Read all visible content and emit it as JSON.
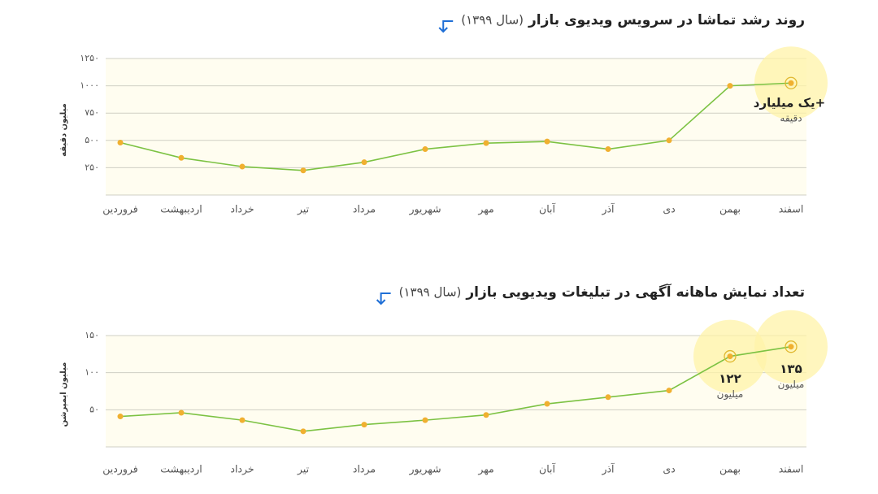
{
  "chart_data": [
    {
      "type": "line",
      "title": "روند رشد تماشا در سرویس ویدیوی بازار",
      "subtitle": "(سال ۱۳۹۹)",
      "y_label": "میلیون دقیقه",
      "categories": [
        "فروردین",
        "اردیبهشت",
        "خرداد",
        "تیر",
        "مرداد",
        "شهریور",
        "مهر",
        "آبان",
        "آذر",
        "دی",
        "بهمن",
        "اسفند"
      ],
      "values": [
        480,
        340,
        260,
        225,
        300,
        420,
        475,
        490,
        420,
        500,
        1000,
        1025
      ],
      "line_color": "#7cc243",
      "marker_color": "#f0b030",
      "ylim": [
        0,
        1250
      ],
      "yticks": [
        {
          "value": 250,
          "label": "۲۵۰"
        },
        {
          "value": 500,
          "label": "۵۰۰"
        },
        {
          "value": 750,
          "label": "۷۵۰"
        },
        {
          "value": 1000,
          "label": "۱۰۰۰"
        },
        {
          "value": 1250,
          "label": "۱۲۵۰"
        }
      ],
      "grid": true,
      "annotation": {
        "text": "+یک میلیارد",
        "unit": "دقیقه"
      }
    },
    {
      "type": "line",
      "title": "تعداد نمایش ماهانه آگهی در تبلیغات ویدیویی بازار",
      "subtitle": "(سال ۱۳۹۹)",
      "y_label": "میلیون ایمپرشن",
      "categories": [
        "فروردین",
        "اردیبهشت",
        "خرداد",
        "تیر",
        "مرداد",
        "شهریور",
        "مهر",
        "آبان",
        "آذر",
        "دی",
        "بهمن",
        "اسفند"
      ],
      "values": [
        41,
        46,
        36,
        21,
        30,
        36,
        43,
        58,
        67,
        76,
        122,
        135
      ],
      "value_labels": [
        null,
        null,
        null,
        null,
        null,
        null,
        null,
        null,
        null,
        null,
        "۱۲۲",
        "۱۳۵"
      ],
      "value_label_unit": "میلیون",
      "line_color": "#7cc243",
      "marker_color": "#f0b030",
      "ylim": [
        0,
        150
      ],
      "yticks": [
        {
          "value": 50,
          "label": "۵۰"
        },
        {
          "value": 100,
          "label": "۱۰۰"
        },
        {
          "value": 150,
          "label": "۱۵۰"
        }
      ],
      "grid": true
    }
  ]
}
